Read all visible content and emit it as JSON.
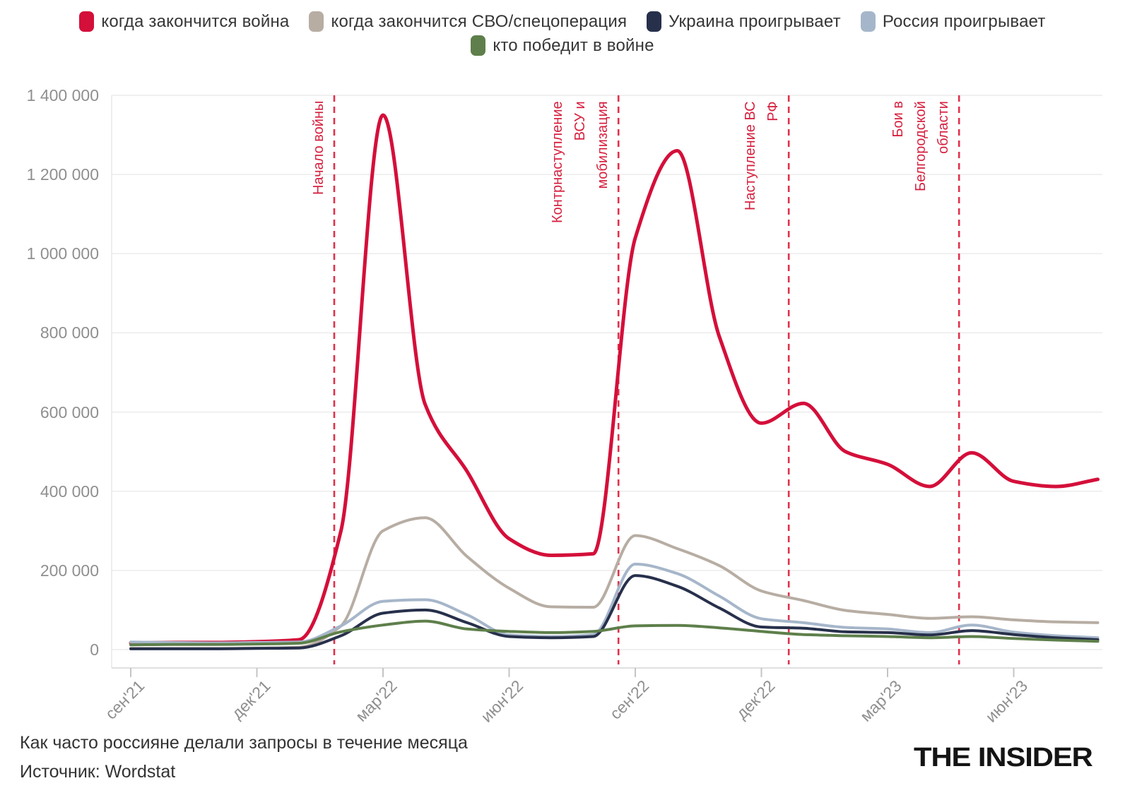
{
  "chart_data": {
    "type": "line",
    "title": "Как часто россияне делали запросы в течение месяца",
    "source": "Источник: Wordstat",
    "ylim": [
      0,
      1400000
    ],
    "grid": "horizontal",
    "legend_position": "top",
    "months": [
      "сен'21",
      "окт'21",
      "ноя'21",
      "дек'21",
      "янв'22",
      "фев'22",
      "мар'22",
      "апр'22",
      "май'22",
      "июн'22",
      "июл'22",
      "авг'22",
      "сен'22",
      "окт'22",
      "ноя'22",
      "дек'22",
      "янв'23",
      "фев'23",
      "мар'23",
      "апр'23",
      "май'23",
      "июн'23",
      "июл'23",
      "авг'23"
    ],
    "y_ticks": [
      {
        "label": "0",
        "value": 0
      },
      {
        "label": "200 000",
        "value": 200000
      },
      {
        "label": "400 000",
        "value": 400000
      },
      {
        "label": "600 000",
        "value": 600000
      },
      {
        "label": "800 000",
        "value": 800000
      },
      {
        "label": "1 000 000",
        "value": 1000000
      },
      {
        "label": "1 200 000",
        "value": 1200000
      },
      {
        "label": "1 400 000",
        "value": 1400000
      }
    ],
    "x_ticks": [
      {
        "label": "сен'21",
        "month_index": 0
      },
      {
        "label": "дек'21",
        "month_index": 3
      },
      {
        "label": "мар'22",
        "month_index": 6
      },
      {
        "label": "июн'22",
        "month_index": 9
      },
      {
        "label": "сен'22",
        "month_index": 12
      },
      {
        "label": "дек'22",
        "month_index": 15
      },
      {
        "label": "мар'23",
        "month_index": 18
      },
      {
        "label": "июн'23",
        "month_index": 21
      }
    ],
    "series": [
      {
        "name": "когда закончится война",
        "color": "#d40f3a",
        "line_width": 5,
        "values": [
          17000,
          18000,
          18000,
          20000,
          25000,
          300000,
          1350000,
          620000,
          450000,
          280000,
          238000,
          242000,
          1040000,
          1260000,
          790000,
          572000,
          622000,
          500000,
          468000,
          412000,
          497000,
          425000,
          412000,
          430000
        ]
      },
      {
        "name": "когда закончится СВО/спецоперация",
        "color": "#b7ada3",
        "line_width": 4,
        "values": [
          3000,
          3000,
          3000,
          4000,
          6000,
          60000,
          300000,
          333000,
          235000,
          155000,
          108000,
          107000,
          288000,
          255000,
          212000,
          148000,
          124000,
          99000,
          89000,
          79000,
          83000,
          75000,
          70000,
          68000
        ]
      },
      {
        "name": "Украина проигрывает",
        "color": "#27304b",
        "line_width": 4,
        "values": [
          2000,
          2000,
          2000,
          3000,
          4000,
          35000,
          92000,
          100000,
          68000,
          33000,
          30000,
          33000,
          187000,
          160000,
          105000,
          57000,
          54000,
          45000,
          43000,
          37000,
          48000,
          38000,
          30000,
          25000
        ]
      },
      {
        "name": "Россия проигрывает",
        "color": "#a6b6ca",
        "line_width": 4,
        "values": [
          19000,
          18000,
          17000,
          18000,
          19000,
          60000,
          122000,
          126000,
          88000,
          37000,
          33000,
          38000,
          216000,
          192000,
          135000,
          78000,
          68000,
          56000,
          52000,
          43000,
          62000,
          44000,
          35000,
          30000
        ]
      },
      {
        "name": "кто победит в войне",
        "color": "#5e7f4b",
        "line_width": 4,
        "values": [
          12000,
          13000,
          13000,
          14000,
          16000,
          45000,
          62000,
          72000,
          52000,
          46000,
          43000,
          46000,
          60000,
          61000,
          55000,
          46000,
          38000,
          35000,
          33000,
          30000,
          33000,
          28000,
          24000,
          21000
        ]
      }
    ],
    "annotations": [
      {
        "text": "Начало войны",
        "month_index": 4.84
      },
      {
        "text": "Контрнаступление\nВСУ и\nмобилизация",
        "month_index": 11.6
      },
      {
        "text": "Наступление ВС\nРФ",
        "month_index": 15.65
      },
      {
        "text": "Бои в\nБелгородской\nобласти",
        "month_index": 19.7
      }
    ],
    "annotation_color": "#d6213f",
    "dashed_line_color": "#e0314b"
  },
  "branding": {
    "logo": "THE INSIDER"
  }
}
